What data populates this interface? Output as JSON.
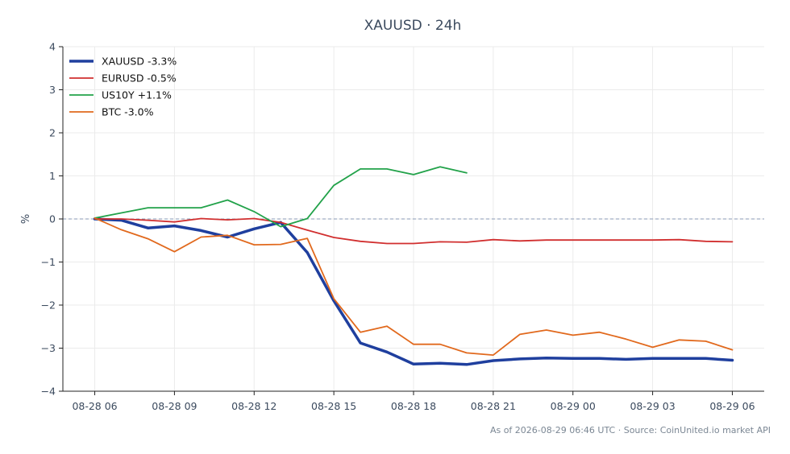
{
  "chart_data": {
    "type": "line",
    "title": "XAUUSD · 24h",
    "xlabel": "",
    "ylabel": "%",
    "ylim": [
      -4,
      4
    ],
    "yticks": [
      -4,
      -3,
      -2,
      -1,
      0,
      1,
      2,
      3,
      4
    ],
    "ytick_labels": [
      "−4",
      "−3",
      "−2",
      "−1",
      "0",
      "1",
      "2",
      "3",
      "4"
    ],
    "xlim": [
      -1.2,
      25.2
    ],
    "xticks": [
      0,
      3,
      6,
      9,
      12,
      15,
      18,
      21,
      24
    ],
    "xtick_labels": [
      "08-28 06",
      "08-28 09",
      "08-28 12",
      "08-28 15",
      "08-28 18",
      "08-28 21",
      "08-29 00",
      "08-29 03",
      "08-29 06"
    ],
    "x": [
      "08-28 06",
      "08-28 07",
      "08-28 08",
      "08-28 09",
      "08-28 10",
      "08-28 11",
      "08-28 12",
      "08-28 13",
      "08-28 14",
      "08-28 15",
      "08-28 16",
      "08-28 17",
      "08-28 18",
      "08-28 19",
      "08-28 20",
      "08-28 21",
      "08-28 22",
      "08-28 23",
      "08-29 00",
      "08-29 01",
      "08-29 02",
      "08-29 03",
      "08-29 04",
      "08-29 05",
      "08-29 06"
    ],
    "reference_line": 0,
    "grid": true,
    "legend_position": "top-left",
    "series": [
      {
        "name": "XAUUSD -3.3%",
        "color": "#1f3f9e",
        "width": 3.5,
        "values": [
          0,
          -0.03,
          -0.21,
          -0.16,
          -0.27,
          -0.42,
          -0.23,
          -0.08,
          -0.78,
          -1.9,
          -2.88,
          -3.09,
          -3.37,
          -3.35,
          -3.38,
          -3.29,
          -3.25,
          -3.23,
          -3.24,
          -3.24,
          -3.26,
          -3.24,
          -3.24,
          -3.24,
          -3.28
        ]
      },
      {
        "name": "EURUSD -0.5%",
        "color": "#d12f2f",
        "width": 1.8,
        "values": [
          0,
          0,
          -0.03,
          -0.07,
          0.01,
          -0.02,
          0.01,
          -0.08,
          -0.26,
          -0.43,
          -0.52,
          -0.57,
          -0.57,
          -0.53,
          -0.54,
          -0.48,
          -0.51,
          -0.49,
          -0.49,
          -0.49,
          -0.49,
          -0.49,
          -0.48,
          -0.52,
          -0.53
        ]
      },
      {
        "name": "US10Y +1.1%",
        "color": "#22a24a",
        "width": 1.8,
        "values": [
          0.02,
          0.14,
          0.26,
          0.26,
          0.26,
          0.44,
          0.17,
          -0.18,
          0.01,
          0.78,
          1.16,
          1.16,
          1.03,
          1.21,
          1.07,
          null,
          null,
          null,
          null,
          null,
          null,
          null,
          null,
          null,
          null
        ]
      },
      {
        "name": "BTC -3.0%",
        "color": "#e1691d",
        "width": 1.8,
        "values": [
          0.02,
          -0.25,
          -0.46,
          -0.76,
          -0.42,
          -0.38,
          -0.6,
          -0.59,
          -0.45,
          -1.85,
          -2.63,
          -2.49,
          -2.91,
          -2.91,
          -3.11,
          -3.16,
          -2.68,
          -2.58,
          -2.7,
          -2.63,
          -2.79,
          -2.98,
          -2.81,
          -2.84,
          -3.04
        ]
      }
    ]
  },
  "footer": "As of 2026-08-29 06:46 UTC · Source: CoinUnited.io market API"
}
